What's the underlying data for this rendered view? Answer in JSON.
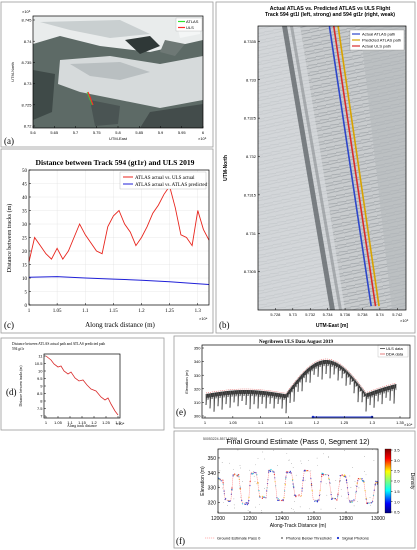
{
  "panels": {
    "a": {
      "label": "(a)",
      "ylabel": "UTM-North",
      "xlabel": "UTM-East",
      "y_exp": "×10⁶",
      "x_exp": "×10⁵",
      "legend": [
        {
          "name": "ATLAS",
          "color": "#2ee62e"
        },
        {
          "name": "ULS",
          "color": "#ff2a2a"
        }
      ],
      "yticks": [
        "8.745",
        "8.74",
        "8.735",
        "8.73",
        "8.725",
        "8.72"
      ],
      "xticks": [
        "5.6",
        "5.65",
        "5.7",
        "5.75",
        "5.8",
        "5.85",
        "5.9",
        "5.95",
        "6"
      ]
    },
    "b": {
      "label": "(b)"
    },
    "c": {
      "label": "(c)"
    },
    "d": {
      "label": "(d)",
      "title": "Distance between ATLAS actual path and ATLAS predicted path",
      "subtitle": "594 gt1r",
      "ylabel": "Distance between tracks (m)",
      "xlabel": "Along track distance",
      "x_exp": "×10⁴",
      "yticks": [
        "11",
        "10.5",
        "10",
        "9.5",
        "9",
        "8.5",
        "8",
        "7.5",
        "7"
      ],
      "xticks": [
        "1",
        "1.05",
        "1.1",
        "1.15",
        "1.2",
        "1.25",
        "1.3"
      ]
    },
    "e": {
      "label": "(e)",
      "title": "Negribreen ULS Data August 2019",
      "ylabel": "Elevation (m)",
      "x_exp": "×10⁴",
      "legend": [
        {
          "name": "ULS data",
          "color": "#000000"
        },
        {
          "name": "DDA data",
          "color": "#d62b2b"
        }
      ],
      "yticks": [
        "350",
        "340",
        "330",
        "320",
        "310",
        "300"
      ],
      "xticks": [
        "1",
        "1.05",
        "1.1",
        "1.15",
        "1.2",
        "1.25",
        "1.3",
        "1.35"
      ]
    },
    "f": {
      "label": "(f)"
    }
  },
  "chart_data": [
    {
      "type": "line",
      "title": "Distance between Track 594 (gt1r) and ULS 2019",
      "xlabel": "Along track distance (m)",
      "ylabel": "Distance between tracks (m)",
      "x_exp": "×10⁴",
      "xlim": [
        10000,
        13200
      ],
      "ylim": [
        0,
        50
      ],
      "xticks": [
        "1",
        "1.05",
        "1.1",
        "1.15",
        "1.2",
        "1.25",
        "1.3"
      ],
      "yticks": [
        "0",
        "5",
        "10",
        "15",
        "20",
        "25",
        "30",
        "35",
        "40",
        "45",
        "50"
      ],
      "legend_position": "top-right",
      "series": [
        {
          "name": "ATLAS actual vs. ULS actual",
          "color": "#e8261e",
          "x": [
            10000,
            10100,
            10200,
            10300,
            10400,
            10500,
            10600,
            10700,
            10800,
            10900,
            11000,
            11100,
            11200,
            11300,
            11400,
            11500,
            11600,
            11700,
            11800,
            11900,
            12000,
            12100,
            12200,
            12300,
            12400,
            12500,
            12600,
            12700,
            12800,
            12900,
            13000,
            13100,
            13200
          ],
          "y": [
            16,
            25,
            22,
            19,
            17,
            21,
            17,
            20,
            25,
            30,
            26,
            23,
            20,
            19,
            29,
            33,
            35,
            30,
            27,
            22,
            25,
            29,
            34,
            37,
            41,
            44,
            36,
            26,
            25,
            22,
            35,
            28,
            24
          ]
        },
        {
          "name": "ATLAS actual vs. ATLAS predicted",
          "color": "#2020d8",
          "x": [
            10000,
            10500,
            11000,
            11500,
            12000,
            12500,
            13000,
            13200
          ],
          "y": [
            10.3,
            10.5,
            10.0,
            9.6,
            9.2,
            8.6,
            7.9,
            7.6
          ]
        }
      ]
    },
    {
      "type": "line",
      "title": "Actual ATLAS vs. Predicted ATLAS vs ULS Flight Track 594 gt1l (left, strong) and 594 gt1r (right, weak)",
      "xlabel": "UTM-East [m]",
      "ylabel": "UTM-North",
      "x_exp": "×10⁵",
      "xlim": [
        572.6,
        574.3
      ],
      "ylim": [
        8730.0,
        8733.7
      ],
      "xticks": [
        "5.728",
        "5.73",
        "5.732",
        "5.734",
        "5.736",
        "5.738",
        "5.74",
        "5.742"
      ],
      "yticks": [
        "8.7335",
        "8.733",
        "8.7325",
        "8.732",
        "8.7315",
        "8.731",
        "8.7305"
      ],
      "legend_position": "top-right",
      "series": [
        {
          "name": "Actual ATLAS path",
          "color": "#2d46c9",
          "x": [
            573.42,
            573.9
          ],
          "y": [
            8733.7,
            8730.05
          ]
        },
        {
          "name": "Predicted ATLAS path",
          "color": "#d9a300",
          "x": [
            573.52,
            573.99
          ],
          "y": [
            8733.7,
            8730.05
          ]
        },
        {
          "name": "Actual ULS path",
          "color": "#d92b2b",
          "x": [
            573.47,
            573.95
          ],
          "y": [
            8733.7,
            8730.05
          ]
        }
      ]
    },
    {
      "type": "scatter",
      "title": "Final Ground Estimate (Pass 0, Segment 12)",
      "subtitle": "50053224-557147396",
      "xlabel": "Along-Track Distance (m)",
      "ylabel": "Elevation (m)",
      "colorbar_label": "Density",
      "colorbar_ticks": [
        "3.5",
        "3.0",
        "2.5",
        "2.0",
        "1.5",
        "1.0",
        "0.5"
      ],
      "xlim": [
        12000,
        13000
      ],
      "ylim": [
        313,
        356
      ],
      "xticks": [
        "12000",
        "12200",
        "12400",
        "12600",
        "12800",
        "13000"
      ],
      "yticks": [
        "350",
        "340",
        "330",
        "320"
      ],
      "legend_position": "bottom",
      "legend": [
        "Ground Estimate Pass 0",
        "Photons Below Threshold",
        "Signal Photons"
      ],
      "ground_estimate": {
        "x": [
          12000,
          12030,
          12045,
          12080,
          12095,
          12130,
          12150,
          12190,
          12205,
          12240,
          12260,
          12300,
          12318,
          12350,
          12370,
          12410,
          12428,
          12460,
          12480,
          12520,
          12540,
          12575,
          12595,
          12630,
          12650,
          12690,
          12710,
          12745,
          12765,
          12800,
          12820,
          12855,
          12875,
          12910,
          12930,
          12965,
          12985,
          13000
        ],
        "y": [
          336,
          335,
          322,
          321,
          339,
          338,
          320,
          319,
          340,
          340,
          324,
          323,
          342,
          341,
          322,
          321,
          341,
          340,
          325,
          324,
          342,
          341,
          322,
          321,
          339,
          339,
          323,
          322,
          338,
          338,
          321,
          321,
          336,
          335,
          320,
          320,
          334,
          333
        ]
      }
    }
  ]
}
